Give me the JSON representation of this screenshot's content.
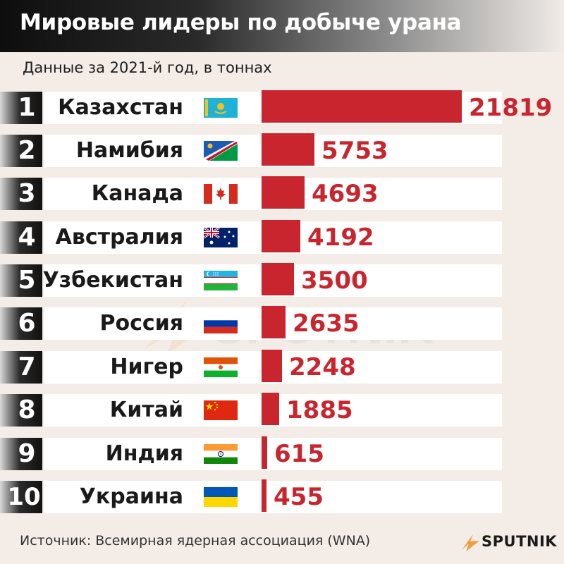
{
  "title": "Мировые лидеры по добыче урана",
  "subtitle": "Данные за 2021-й год, в тоннах",
  "source": "Источник: Всемирная ядерная ассоциация (WNA)",
  "brand": "SPUTNIK",
  "watermark": "SPUTNIK",
  "colors": {
    "bar": "#c8252f",
    "header_dark": "#0e0e0e",
    "background": "#f4ece7"
  },
  "chart_data": {
    "type": "bar",
    "orientation": "horizontal",
    "categories": [
      "Казахстан",
      "Намибия",
      "Канада",
      "Австралия",
      "Узбекистан",
      "Россия",
      "Нигер",
      "Китай",
      "Индия",
      "Украина"
    ],
    "ranks": [
      "1",
      "2",
      "3",
      "4",
      "5",
      "6",
      "7",
      "8",
      "9",
      "10"
    ],
    "values": [
      21819,
      5753,
      4693,
      4192,
      3500,
      2635,
      2248,
      1885,
      615,
      455
    ],
    "flags": [
      "kazakhstan-flag",
      "namibia-flag",
      "canada-flag",
      "australia-flag",
      "uzbekistan-flag",
      "russia-flag",
      "niger-flag",
      "china-flag",
      "india-flag",
      "ukraine-flag"
    ],
    "title": "Мировые лидеры по добыче урана",
    "subtitle": "Данные за 2021-й год, в тоннах",
    "xlim": [
      0,
      21819
    ],
    "grid": false,
    "legend": "none"
  }
}
